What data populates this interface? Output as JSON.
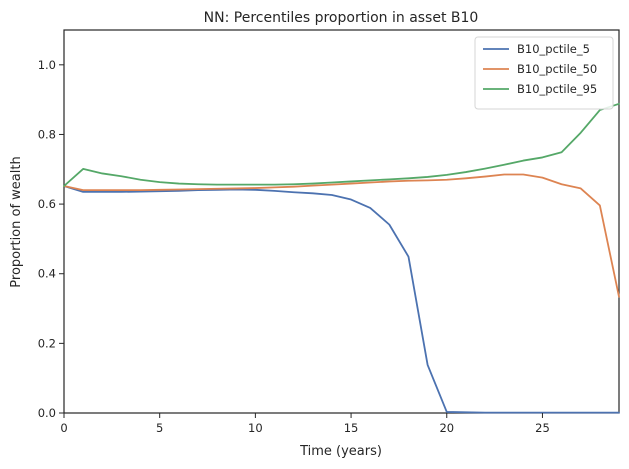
{
  "chart_data": {
    "type": "line",
    "title": "NN: Percentiles proportion in asset B10",
    "xlabel": "Time (years)",
    "ylabel": "Proportion of wealth",
    "xlim": [
      0,
      29
    ],
    "ylim": [
      0,
      1.1
    ],
    "xticks": [
      0,
      5,
      10,
      15,
      20,
      25
    ],
    "xtick_labels": [
      "0",
      "5",
      "10",
      "15",
      "20",
      "25"
    ],
    "yticks": [
      0.0,
      0.2,
      0.4,
      0.6,
      0.8,
      1.0
    ],
    "ytick_labels": [
      "0.0",
      "0.2",
      "0.4",
      "0.6",
      "0.8",
      "1.0"
    ],
    "grid": false,
    "legend_position": "top-right",
    "x": [
      0,
      1,
      2,
      3,
      4,
      5,
      6,
      7,
      8,
      9,
      10,
      11,
      12,
      13,
      14,
      15,
      16,
      17,
      18,
      19,
      20,
      21,
      22,
      23,
      24,
      25,
      26,
      27,
      28,
      29
    ],
    "series": [
      {
        "name": "B10_pctile_5",
        "color": "#4c72b0",
        "values": [
          0.652,
          0.635,
          0.635,
          0.635,
          0.636,
          0.637,
          0.638,
          0.64,
          0.641,
          0.642,
          0.641,
          0.638,
          0.634,
          0.631,
          0.626,
          0.613,
          0.589,
          0.541,
          0.449,
          0.138,
          0.003,
          0.002,
          0.001,
          0.001,
          0.001,
          0.001,
          0.001,
          0.001,
          0.001,
          0.001
        ]
      },
      {
        "name": "B10_pctile_50",
        "color": "#dd8452",
        "values": [
          0.652,
          0.64,
          0.64,
          0.64,
          0.64,
          0.641,
          0.642,
          0.643,
          0.644,
          0.645,
          0.646,
          0.648,
          0.65,
          0.653,
          0.656,
          0.659,
          0.662,
          0.665,
          0.667,
          0.668,
          0.67,
          0.674,
          0.679,
          0.685,
          0.685,
          0.676,
          0.657,
          0.645,
          0.596,
          0.334
        ]
      },
      {
        "name": "B10_pctile_95",
        "color": "#55a868",
        "values": [
          0.652,
          0.701,
          0.688,
          0.68,
          0.67,
          0.663,
          0.659,
          0.657,
          0.656,
          0.656,
          0.656,
          0.656,
          0.657,
          0.659,
          0.662,
          0.665,
          0.668,
          0.671,
          0.674,
          0.678,
          0.684,
          0.692,
          0.702,
          0.713,
          0.725,
          0.734,
          0.749,
          0.805,
          0.87,
          0.888
        ]
      }
    ]
  }
}
